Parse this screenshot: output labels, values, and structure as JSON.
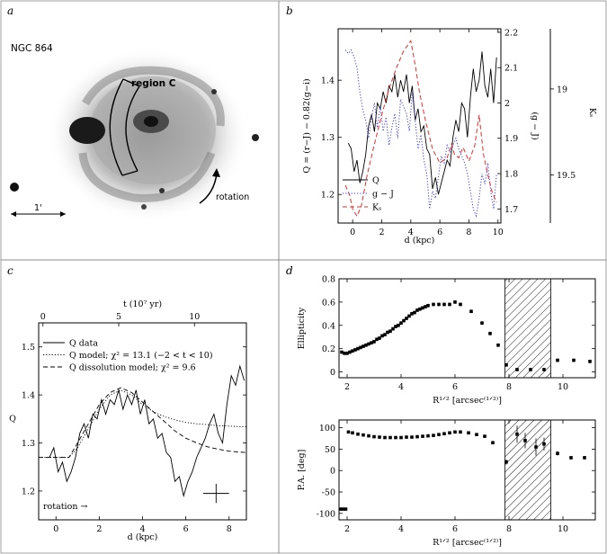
{
  "panels": {
    "a": {
      "label": "a",
      "galaxy": "NGC 864",
      "region": "region C",
      "rotation": "rotation",
      "scale": "1'"
    },
    "b": {
      "label": "b"
    },
    "c": {
      "label": "c"
    },
    "d": {
      "label": "d"
    }
  },
  "colors": {
    "q": "#000000",
    "gj": "#3a3ae0",
    "ks": "#e03030",
    "frame": "#8a8a8a"
  },
  "chart_data": [
    {
      "id": "b",
      "type": "line",
      "xlabel": "d (kpc)",
      "ylabel": "Q = (r−J) − 0.82(g−i)",
      "ylabel_right": "(g − J)",
      "ylabel_right2": "Kₛ",
      "xlim": [
        -1,
        10.2
      ],
      "ylim": [
        1.15,
        1.49
      ],
      "ylim_right": [
        1.66,
        2.21
      ],
      "ylim_right2": [
        19.78,
        18.65
      ],
      "xticks": [
        0,
        2,
        4,
        6,
        8,
        10
      ],
      "yticks": [
        1.2,
        1.3,
        1.4
      ],
      "yticks_right": [
        1.7,
        1.8,
        1.9,
        2,
        2.1,
        2.2
      ],
      "yticks_right2": [
        19,
        19.5
      ],
      "legend": [
        "Q",
        "g − J",
        "Kₛ"
      ],
      "legend_position": "bottom-left",
      "series": [
        {
          "name": "Q",
          "axis": "left",
          "style": "solid",
          "x": [
            -0.3,
            -0.1,
            0.1,
            0.3,
            0.5,
            0.7,
            0.9,
            1.1,
            1.3,
            1.5,
            1.7,
            1.9,
            2.1,
            2.3,
            2.5,
            2.7,
            2.9,
            3.1,
            3.3,
            3.5,
            3.7,
            3.9,
            4.1,
            4.3,
            4.5,
            4.7,
            4.9,
            5.1,
            5.3,
            5.5,
            5.7,
            5.9,
            6.1,
            6.3,
            6.5,
            6.7,
            6.9,
            7.1,
            7.3,
            7.5,
            7.7,
            7.9,
            8.1,
            8.3,
            8.5,
            8.7,
            8.9,
            9.1,
            9.3,
            9.5,
            9.7,
            9.9
          ],
          "y": [
            1.29,
            1.28,
            1.24,
            1.26,
            1.22,
            1.24,
            1.27,
            1.32,
            1.34,
            1.31,
            1.36,
            1.35,
            1.38,
            1.36,
            1.39,
            1.38,
            1.41,
            1.37,
            1.4,
            1.38,
            1.41,
            1.36,
            1.39,
            1.33,
            1.35,
            1.31,
            1.32,
            1.28,
            1.27,
            1.21,
            1.23,
            1.2,
            1.22,
            1.24,
            1.26,
            1.25,
            1.3,
            1.33,
            1.31,
            1.36,
            1.35,
            1.3,
            1.37,
            1.42,
            1.38,
            1.4,
            1.45,
            1.39,
            1.37,
            1.42,
            1.36,
            1.44
          ]
        },
        {
          "name": "g − J",
          "axis": "right",
          "style": "dotted",
          "x": [
            -0.5,
            -0.3,
            -0.1,
            0.1,
            0.3,
            0.5,
            0.7,
            0.9,
            1.1,
            1.3,
            1.5,
            1.7,
            1.9,
            2.1,
            2.3,
            2.5,
            2.7,
            2.9,
            3.1,
            3.3,
            3.5,
            3.7,
            3.9,
            4.1,
            4.3,
            4.5,
            4.7,
            4.9,
            5.1,
            5.3,
            5.5,
            5.7,
            5.9,
            6.1,
            6.3,
            6.5,
            6.7,
            6.9,
            7.1,
            7.3,
            7.5,
            7.7,
            7.9,
            8.1,
            8.3,
            8.5,
            8.7,
            8.9,
            9.1,
            9.3,
            9.5,
            9.7,
            9.9
          ],
          "y": [
            2.15,
            2.14,
            2.15,
            2.13,
            2.1,
            2.03,
            1.98,
            1.95,
            1.9,
            1.96,
            2.0,
            1.93,
            1.99,
            1.92,
            1.96,
            1.88,
            1.93,
            1.97,
            1.9,
            2.01,
            1.99,
            1.97,
            1.92,
            2.03,
            1.95,
            1.87,
            1.91,
            1.84,
            1.8,
            1.7,
            1.75,
            1.73,
            1.79,
            1.85,
            1.83,
            1.88,
            1.86,
            1.88,
            1.9,
            1.87,
            1.85,
            1.83,
            1.8,
            1.75,
            1.7,
            1.68,
            1.73,
            1.8,
            1.77,
            1.83,
            1.75,
            1.7,
            1.8
          ]
        },
        {
          "name": "Kₛ",
          "axis": "right2",
          "style": "dashed",
          "x": [
            -0.5,
            -0.2,
            0,
            0.3,
            0.6,
            1.0,
            1.5,
            2.0,
            2.5,
            3.0,
            3.5,
            4.0,
            4.3,
            4.6,
            5.0,
            5.5,
            6.0,
            6.5,
            6.8,
            7.0,
            7.3,
            7.6,
            8.0,
            8.4,
            8.7,
            9.0,
            9.3,
            9.6,
            9.9
          ],
          "y": [
            19.56,
            19.62,
            19.7,
            19.74,
            19.68,
            19.5,
            19.32,
            19.15,
            19.0,
            18.88,
            18.78,
            18.72,
            18.86,
            19.02,
            19.18,
            19.35,
            19.43,
            19.4,
            19.32,
            19.38,
            19.4,
            19.34,
            19.42,
            19.33,
            19.15,
            19.38,
            19.5,
            19.6,
            19.66
          ]
        }
      ]
    },
    {
      "id": "c",
      "type": "line",
      "xlabel": "d (kpc)",
      "ylabel": "Q",
      "xlabel_top": "t (10⁷ yr)",
      "xlim": [
        -0.8,
        8.8
      ],
      "ylim": [
        1.14,
        1.55
      ],
      "xticks": [
        0,
        2,
        4,
        6,
        8
      ],
      "xticks_top": [
        0,
        5,
        10
      ],
      "yticks": [
        1.2,
        1.3,
        1.4,
        1.5
      ],
      "legend": [
        "Q data",
        "Q model; χ² = 13.1 (−2 < t < 10)",
        "Q dissolution model; χ² = 9.6"
      ],
      "legend_position": "top-left",
      "annotation": "rotation →",
      "error_bar": {
        "x": 7.4,
        "y": 1.195,
        "xerr": 0.6,
        "yerr": 0.02
      },
      "series": [
        {
          "name": "Q data",
          "style": "solid",
          "x": [
            -0.3,
            -0.1,
            0.1,
            0.3,
            0.5,
            0.7,
            0.9,
            1.1,
            1.3,
            1.5,
            1.7,
            1.9,
            2.1,
            2.3,
            2.5,
            2.7,
            2.9,
            3.1,
            3.3,
            3.5,
            3.7,
            3.9,
            4.1,
            4.3,
            4.5,
            4.7,
            4.9,
            5.1,
            5.3,
            5.5,
            5.7,
            5.9,
            6.1,
            6.3,
            6.5,
            6.7,
            6.9,
            7.1,
            7.3,
            7.5,
            7.7,
            7.9,
            8.1,
            8.3,
            8.5,
            8.7
          ],
          "y": [
            1.27,
            1.29,
            1.24,
            1.26,
            1.22,
            1.24,
            1.27,
            1.32,
            1.34,
            1.31,
            1.36,
            1.35,
            1.39,
            1.36,
            1.39,
            1.38,
            1.41,
            1.37,
            1.4,
            1.38,
            1.41,
            1.36,
            1.39,
            1.34,
            1.35,
            1.31,
            1.32,
            1.28,
            1.27,
            1.22,
            1.23,
            1.19,
            1.22,
            1.24,
            1.27,
            1.29,
            1.31,
            1.34,
            1.36,
            1.32,
            1.3,
            1.38,
            1.44,
            1.42,
            1.46,
            1.43
          ]
        },
        {
          "name": "Q model; χ² = 13.1 (−2 < t < 10)",
          "style": "dotted",
          "x": [
            -0.8,
            0,
            0.6,
            1.0,
            1.5,
            2.0,
            2.5,
            3.0,
            3.5,
            4.0,
            4.5,
            5.0,
            5.5,
            6.0,
            6.5,
            7.0,
            7.5,
            8.0,
            8.5,
            8.8
          ],
          "y": [
            1.27,
            1.27,
            1.27,
            1.29,
            1.33,
            1.37,
            1.4,
            1.41,
            1.4,
            1.38,
            1.365,
            1.355,
            1.348,
            1.343,
            1.34,
            1.338,
            1.336,
            1.335,
            1.334,
            1.334
          ]
        },
        {
          "name": "Q dissolution model; χ² = 9.6",
          "style": "dashed",
          "x": [
            -0.8,
            0,
            0.6,
            1.0,
            1.5,
            2.0,
            2.5,
            3.0,
            3.5,
            4.0,
            4.5,
            5.0,
            5.5,
            6.0,
            6.5,
            7.0,
            7.5,
            8.0,
            8.5,
            8.8
          ],
          "y": [
            1.27,
            1.27,
            1.27,
            1.3,
            1.34,
            1.38,
            1.405,
            1.415,
            1.405,
            1.385,
            1.365,
            1.345,
            1.325,
            1.31,
            1.3,
            1.292,
            1.287,
            1.283,
            1.281,
            1.28
          ]
        }
      ]
    },
    {
      "id": "d-top",
      "type": "scatter",
      "xlabel": "R¹ᐟ² [arcsec⁽¹ᐟ²⁾]",
      "ylabel": "Ellipticity",
      "xlim": [
        1.7,
        11.2
      ],
      "ylim": [
        -0.05,
        0.8
      ],
      "xticks": [
        2,
        4,
        6,
        8,
        10
      ],
      "yticks": [
        0,
        0.2,
        0.4,
        0.6,
        0.8
      ],
      "shaded_region": [
        7.85,
        9.55
      ],
      "series": [
        {
          "name": "",
          "x": [
            1.8,
            1.9,
            2.0,
            2.1,
            2.2,
            2.3,
            2.4,
            2.5,
            2.6,
            2.7,
            2.8,
            2.9,
            3.0,
            3.1,
            3.2,
            3.3,
            3.4,
            3.5,
            3.6,
            3.7,
            3.8,
            3.9,
            4.0,
            4.1,
            4.2,
            4.3,
            4.4,
            4.5,
            4.6,
            4.7,
            4.8,
            4.9,
            5.0,
            5.2,
            5.4,
            5.6,
            5.8,
            6.0,
            6.2,
            6.6,
            7.0,
            7.3,
            7.6,
            7.9,
            8.3,
            8.8,
            9.3,
            9.8,
            10.4,
            11.0
          ],
          "y": [
            0.17,
            0.16,
            0.16,
            0.17,
            0.18,
            0.19,
            0.2,
            0.21,
            0.22,
            0.23,
            0.24,
            0.25,
            0.26,
            0.28,
            0.29,
            0.31,
            0.32,
            0.34,
            0.35,
            0.37,
            0.39,
            0.4,
            0.42,
            0.44,
            0.46,
            0.48,
            0.5,
            0.51,
            0.53,
            0.54,
            0.55,
            0.56,
            0.57,
            0.58,
            0.58,
            0.58,
            0.58,
            0.6,
            0.58,
            0.52,
            0.42,
            0.33,
            0.23,
            0.06,
            0.02,
            0.02,
            0.02,
            0.1,
            0.1,
            0.09
          ],
          "yerr": 0.015
        }
      ]
    },
    {
      "id": "d-bottom",
      "type": "scatter",
      "xlabel": "R¹ᐟ² [arcsec⁽¹ᐟ²⁾]",
      "ylabel": "P.A. [deg]",
      "xlim": [
        1.7,
        11.2
      ],
      "ylim": [
        -115,
        118
      ],
      "xticks": [
        2,
        4,
        6,
        8,
        10
      ],
      "yticks": [
        -100,
        -50,
        0,
        50,
        100
      ],
      "shaded_region": [
        7.85,
        9.55
      ],
      "series": [
        {
          "name": "",
          "x": [
            1.75,
            1.85,
            1.95,
            2.05,
            2.2,
            2.4,
            2.6,
            2.8,
            3.0,
            3.2,
            3.4,
            3.6,
            3.8,
            4.0,
            4.2,
            4.4,
            4.6,
            4.8,
            5.0,
            5.2,
            5.4,
            5.6,
            5.8,
            6.0,
            6.2,
            6.5,
            6.8,
            7.1,
            7.4,
            7.9,
            8.3,
            8.6,
            9.0,
            9.3,
            9.8,
            10.3,
            10.8
          ],
          "y": [
            -90,
            -90,
            -90,
            90,
            88,
            85,
            83,
            81,
            79,
            78,
            77,
            77,
            77,
            77,
            78,
            78,
            79,
            80,
            81,
            82,
            84,
            86,
            88,
            90,
            90,
            88,
            84,
            80,
            65,
            20,
            85,
            70,
            55,
            62,
            40,
            30,
            30
          ],
          "yerr": [
            2,
            2,
            2,
            2,
            2,
            2,
            2,
            2,
            2,
            2,
            2,
            2,
            2,
            2,
            2,
            2,
            2,
            2,
            2,
            2,
            2,
            2,
            2,
            2,
            2,
            3,
            3,
            3,
            4,
            6,
            20,
            18,
            20,
            15,
            5,
            4,
            4
          ]
        }
      ]
    }
  ]
}
